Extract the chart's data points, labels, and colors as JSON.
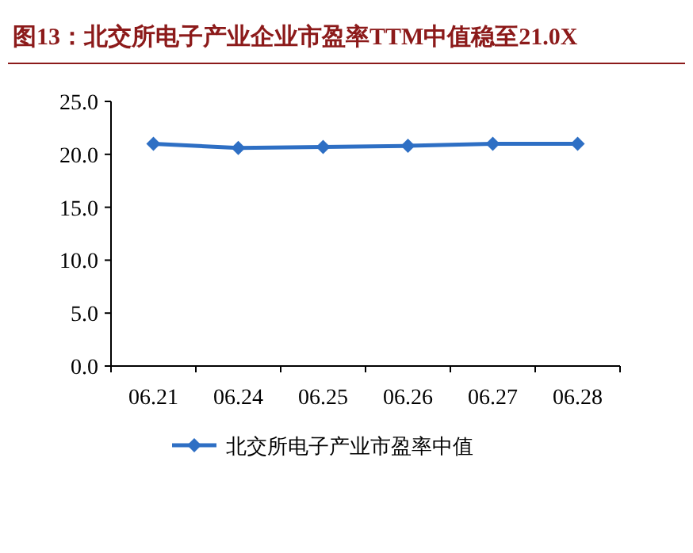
{
  "chart_data": {
    "type": "line",
    "title": "图13：北交所电子产业企业市盈率TTM中值稳至21.0X",
    "categories": [
      "06.21",
      "06.24",
      "06.25",
      "06.26",
      "06.27",
      "06.28"
    ],
    "series": [
      {
        "name": "北交所电子产业市盈率中值",
        "color": "#2e6fc4",
        "values": [
          21.0,
          20.6,
          20.7,
          20.8,
          21.0,
          21.0
        ]
      }
    ],
    "ylim": [
      0,
      25
    ],
    "yticks": [
      {
        "value": 0,
        "label": "0.0"
      },
      {
        "value": 5,
        "label": "5.0"
      },
      {
        "value": 10,
        "label": "10.0"
      },
      {
        "value": 15,
        "label": "15.0"
      },
      {
        "value": 20,
        "label": "20.0"
      },
      {
        "value": 25,
        "label": "25.0"
      }
    ],
    "marker": "diamond",
    "line_style": "solid",
    "legend": "bottom",
    "grid": false
  }
}
